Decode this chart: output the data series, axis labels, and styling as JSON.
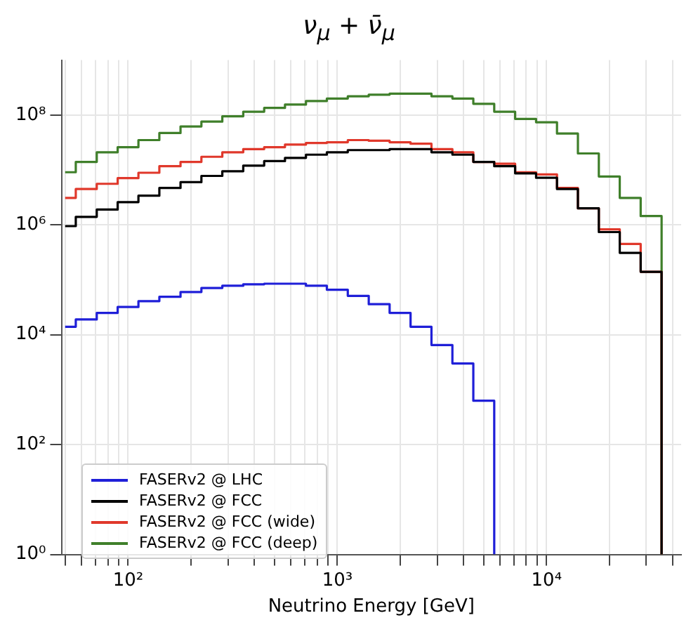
{
  "chart_data": {
    "type": "histogram",
    "title": "ν$_{μ}$ + ν̄$_{μ}$",
    "xlabel": "Neutrino Energy [GeV]",
    "log": "xy",
    "grid": true,
    "legend": "bottom left",
    "line_style": "solid",
    "marker": "none",
    "bins": [
      50,
      56.2,
      70.8,
      89.1,
      112,
      141,
      178,
      224,
      282,
      355,
      447,
      562,
      708,
      891,
      1122,
      1413,
      1778,
      2239,
      2818,
      3548,
      4467,
      5623,
      7079,
      8913,
      11220,
      14125,
      17783,
      22387,
      28184,
      35481
    ],
    "xlim": [
      48,
      44000
    ],
    "ylim": [
      1,
      1000000000
    ],
    "xticks": [
      {
        "value": 50,
        "label": null
      },
      {
        "value": 60,
        "label": null
      },
      {
        "value": 70,
        "label": null
      },
      {
        "value": 80,
        "label": null
      },
      {
        "value": 90,
        "label": null
      },
      {
        "value": 100,
        "label": "10²"
      },
      {
        "value": 200,
        "label": null
      },
      {
        "value": 300,
        "label": null
      },
      {
        "value": 400,
        "label": null
      },
      {
        "value": 500,
        "label": null
      },
      {
        "value": 600,
        "label": null
      },
      {
        "value": 700,
        "label": null
      },
      {
        "value": 800,
        "label": null
      },
      {
        "value": 900,
        "label": null
      },
      {
        "value": 1000,
        "label": "10³"
      },
      {
        "value": 2000,
        "label": null
      },
      {
        "value": 3000,
        "label": null
      },
      {
        "value": 4000,
        "label": null
      },
      {
        "value": 5000,
        "label": null
      },
      {
        "value": 6000,
        "label": null
      },
      {
        "value": 7000,
        "label": null
      },
      {
        "value": 8000,
        "label": null
      },
      {
        "value": 9000,
        "label": null
      },
      {
        "value": 10000,
        "label": "10⁴"
      },
      {
        "value": 20000,
        "label": null
      },
      {
        "value": 30000,
        "label": null
      },
      {
        "value": 40000,
        "label": null
      }
    ],
    "yticks": [
      {
        "value": 1,
        "label": "10⁰"
      },
      {
        "value": 100,
        "label": "10²"
      },
      {
        "value": 10000,
        "label": "10⁴"
      },
      {
        "value": 1000000,
        "label": "10⁶"
      },
      {
        "value": 100000000,
        "label": "10⁸"
      }
    ],
    "series": [
      {
        "name": "FASERv2 @ LHC",
        "color": "#1f1fd8",
        "bins": [
          50,
          56.2,
          70.8,
          89.1,
          112,
          141,
          178,
          224,
          282,
          355,
          447,
          562,
          708,
          891,
          1122,
          1413,
          1778,
          2239,
          2818,
          3548,
          4467,
          5623
        ],
        "values": [
          14000,
          19000,
          25000,
          32000,
          41000,
          49000,
          60000,
          71000,
          78000,
          83000,
          85000,
          85000,
          78000,
          66000,
          51000,
          36000,
          25000,
          14000,
          6500,
          3000,
          630
        ]
      },
      {
        "name": "FASERv2 @ FCC",
        "color": "#000000",
        "values": [
          950000,
          1400000,
          1900000,
          2600000,
          3400000,
          4700000,
          6000000,
          7800000,
          9500000,
          12000000,
          14500000,
          16600000,
          19000000,
          21000000,
          23000000,
          23000000,
          24000000,
          24000000,
          21000000,
          19000000,
          14000000,
          11700000,
          8700000,
          7200000,
          4500000,
          2000000,
          740000,
          310000,
          140000
        ]
      },
      {
        "name": "FASERv2 @ FCC (wide)",
        "color": "#e0382b",
        "values": [
          3100000,
          4500000,
          5600000,
          7100000,
          8900000,
          11700000,
          14000000,
          17400000,
          21000000,
          24000000,
          26000000,
          29000000,
          31000000,
          32000000,
          35000000,
          34000000,
          32000000,
          30000000,
          24000000,
          21000000,
          14000000,
          13000000,
          9100000,
          8300000,
          4700000,
          2000000,
          830000,
          450000,
          140000
        ]
      },
      {
        "name": "FASERv2 @ FCC (deep)",
        "color": "#3f7f2a",
        "values": [
          9100000,
          14000000,
          21000000,
          26000000,
          35000000,
          47000000,
          62000000,
          76000000,
          95000000,
          115000000,
          135000000,
          155000000,
          180000000,
          200000000,
          220000000,
          235000000,
          245000000,
          245000000,
          220000000,
          200000000,
          160000000,
          115000000,
          85000000,
          74000000,
          46000000,
          20000000,
          7600000,
          3100000,
          1450000
        ]
      }
    ]
  }
}
